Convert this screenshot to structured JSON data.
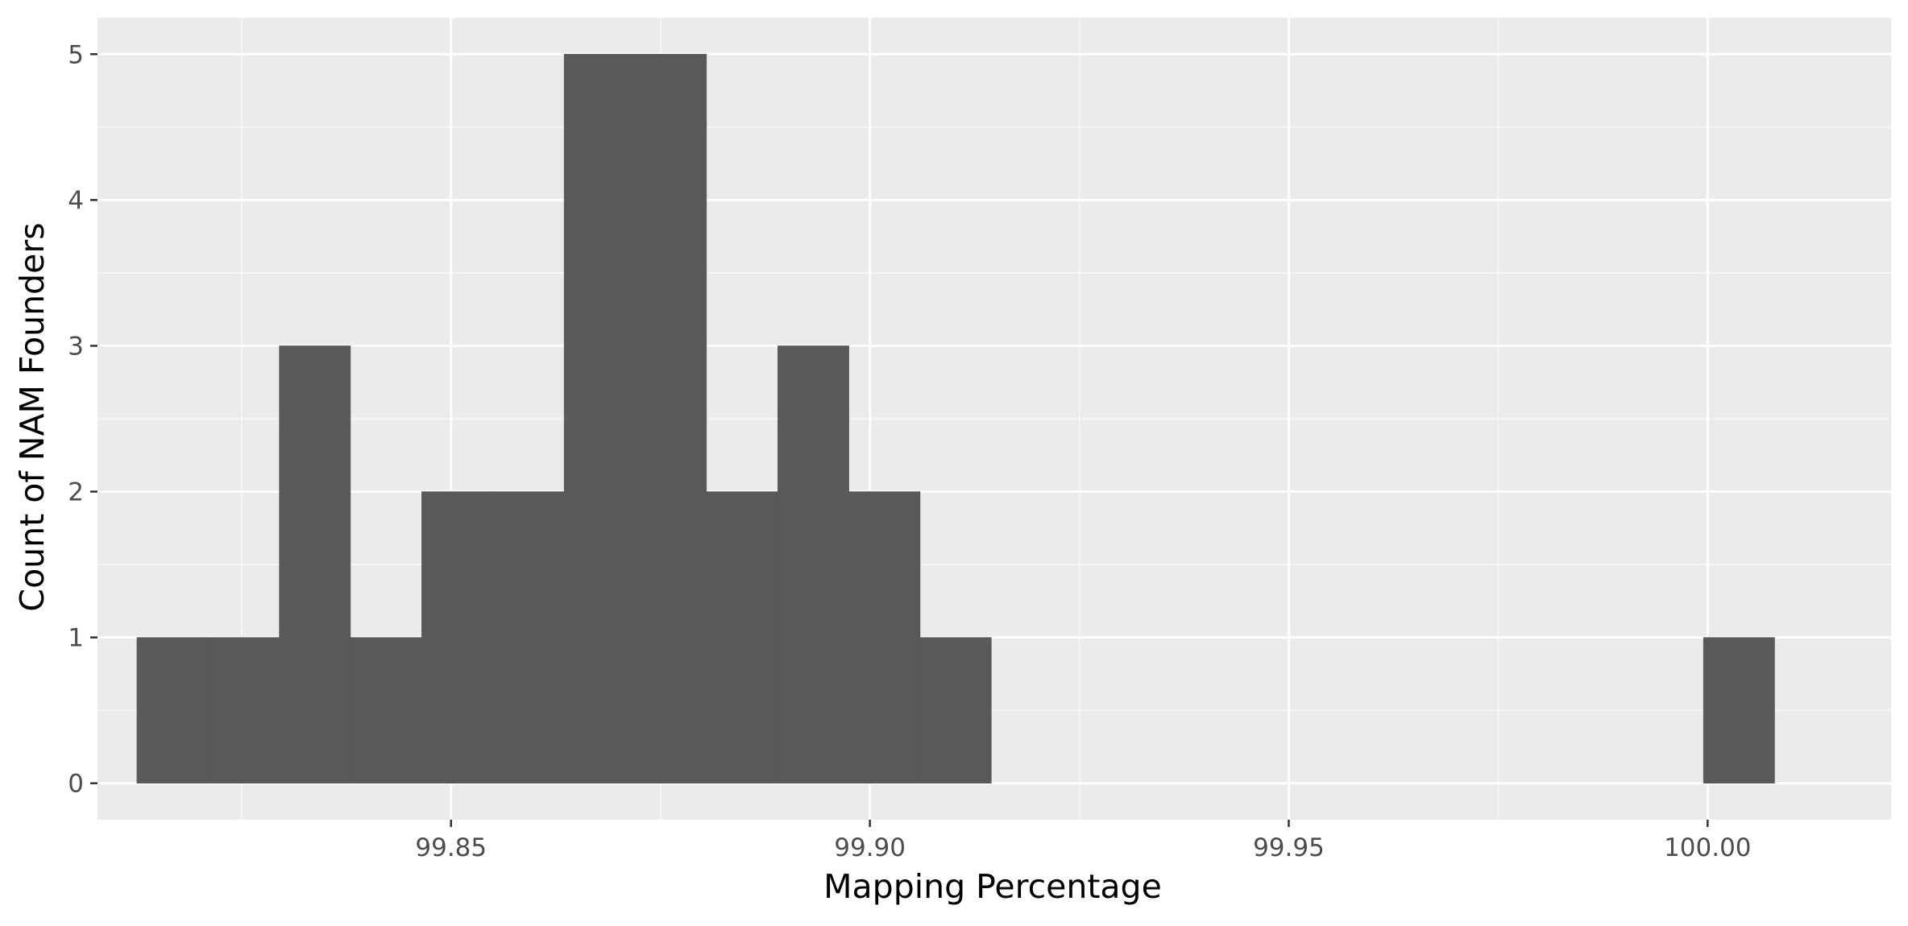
{
  "chart_data": {
    "type": "bar",
    "title": "",
    "xlabel": "Mapping Percentage",
    "ylabel": "Count of NAM Founders",
    "xlim": [
      99.8078,
      100.0219
    ],
    "ylim": [
      -0.25,
      5.25
    ],
    "x_ticks": [
      99.85,
      99.9,
      99.95,
      100.0
    ],
    "x_tick_labels": [
      "99.85",
      "99.90",
      "99.95",
      "100.00"
    ],
    "y_ticks": [
      0,
      1,
      2,
      3,
      4,
      5
    ],
    "y_tick_labels": [
      "0",
      "1",
      "2",
      "3",
      "4",
      "5"
    ],
    "grid": true,
    "bin_width": 0.0085,
    "bins": [
      {
        "x_start": 99.8125,
        "x_end": 99.821,
        "count": 1
      },
      {
        "x_start": 99.821,
        "x_end": 99.8295,
        "count": 1
      },
      {
        "x_start": 99.8295,
        "x_end": 99.838,
        "count": 3
      },
      {
        "x_start": 99.838,
        "x_end": 99.8465,
        "count": 1
      },
      {
        "x_start": 99.8465,
        "x_end": 99.855,
        "count": 2
      },
      {
        "x_start": 99.855,
        "x_end": 99.8635,
        "count": 2
      },
      {
        "x_start": 99.8635,
        "x_end": 99.872,
        "count": 5
      },
      {
        "x_start": 99.872,
        "x_end": 99.8805,
        "count": 5
      },
      {
        "x_start": 99.8805,
        "x_end": 99.889,
        "count": 2
      },
      {
        "x_start": 99.889,
        "x_end": 99.8975,
        "count": 3
      },
      {
        "x_start": 99.8975,
        "x_end": 99.906,
        "count": 2
      },
      {
        "x_start": 99.906,
        "x_end": 99.9145,
        "count": 1
      },
      {
        "x_start": 99.9995,
        "x_end": 100.008,
        "count": 1
      }
    ],
    "colors": {
      "panel_background": "#ebebeb",
      "grid_major": "#ffffff",
      "grid_minor": "#f7f7f7",
      "bar_fill": "#595959",
      "tick_color": "#333333"
    }
  }
}
